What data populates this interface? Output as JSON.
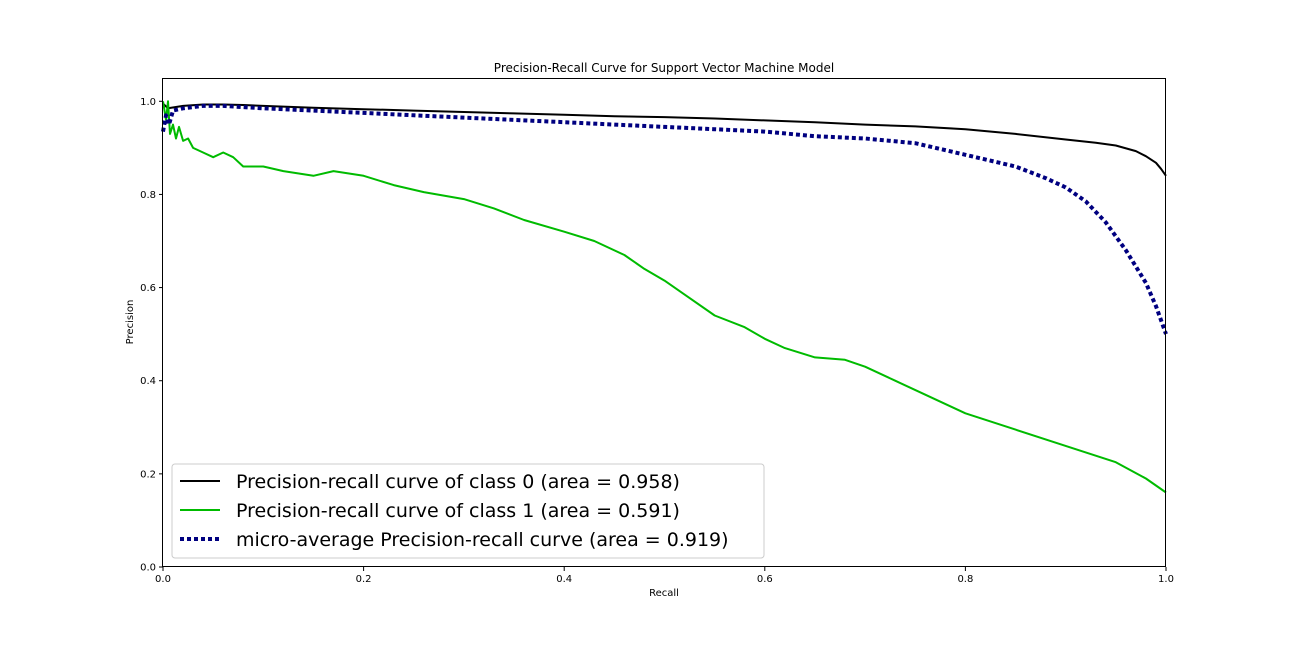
{
  "chart_data": {
    "type": "line",
    "title": "Precision-Recall Curve for Support Vector Machine Model",
    "xlabel": "Recall",
    "ylabel": "Precision",
    "xlim": [
      0,
      1
    ],
    "ylim": [
      0,
      1.05
    ],
    "xticks": [
      "0.0",
      "0.2",
      "0.4",
      "0.6",
      "0.8",
      "1.0"
    ],
    "yticks": [
      "0.0",
      "0.2",
      "0.4",
      "0.6",
      "0.8",
      "1.0"
    ],
    "grid": false,
    "legend_position": "lower-left",
    "series": [
      {
        "name": "Precision-recall curve of class 0 (area = 0.958)",
        "color": "#000000",
        "style": "solid",
        "x": [
          0.0,
          0.005,
          0.02,
          0.04,
          0.06,
          0.08,
          0.1,
          0.15,
          0.2,
          0.25,
          0.3,
          0.35,
          0.4,
          0.45,
          0.5,
          0.55,
          0.6,
          0.65,
          0.7,
          0.75,
          0.8,
          0.85,
          0.9,
          0.93,
          0.95,
          0.97,
          0.98,
          0.99,
          0.995,
          1.0
        ],
        "y": [
          0.995,
          0.985,
          0.99,
          0.993,
          0.993,
          0.992,
          0.99,
          0.986,
          0.983,
          0.98,
          0.977,
          0.974,
          0.971,
          0.968,
          0.966,
          0.963,
          0.959,
          0.955,
          0.95,
          0.946,
          0.94,
          0.93,
          0.918,
          0.911,
          0.905,
          0.893,
          0.882,
          0.868,
          0.855,
          0.84
        ]
      },
      {
        "name": "Precision-recall curve of class 1 (area = 0.591)",
        "color": "#00bb00",
        "style": "solid",
        "x": [
          0.0,
          0.003,
          0.005,
          0.007,
          0.01,
          0.013,
          0.016,
          0.02,
          0.025,
          0.03,
          0.04,
          0.05,
          0.06,
          0.07,
          0.08,
          0.1,
          0.12,
          0.15,
          0.17,
          0.2,
          0.23,
          0.26,
          0.3,
          0.33,
          0.36,
          0.4,
          0.43,
          0.46,
          0.48,
          0.5,
          0.52,
          0.55,
          0.58,
          0.6,
          0.62,
          0.65,
          0.68,
          0.7,
          0.73,
          0.76,
          0.8,
          0.85,
          0.9,
          0.95,
          0.98,
          1.0
        ],
        "y": [
          1.0,
          0.96,
          1.0,
          0.93,
          0.95,
          0.92,
          0.945,
          0.915,
          0.92,
          0.9,
          0.89,
          0.88,
          0.89,
          0.88,
          0.86,
          0.86,
          0.85,
          0.84,
          0.85,
          0.84,
          0.82,
          0.805,
          0.79,
          0.77,
          0.745,
          0.72,
          0.7,
          0.67,
          0.64,
          0.615,
          0.585,
          0.54,
          0.515,
          0.49,
          0.47,
          0.45,
          0.445,
          0.43,
          0.4,
          0.37,
          0.33,
          0.295,
          0.26,
          0.225,
          0.19,
          0.16
        ]
      },
      {
        "name": "micro-average Precision-recall curve (area = 0.919)",
        "color": "#000080",
        "style": "dotted",
        "x": [
          0.0,
          0.003,
          0.006,
          0.01,
          0.02,
          0.04,
          0.06,
          0.1,
          0.15,
          0.2,
          0.25,
          0.3,
          0.35,
          0.4,
          0.45,
          0.5,
          0.55,
          0.6,
          0.65,
          0.7,
          0.75,
          0.8,
          0.85,
          0.88,
          0.9,
          0.92,
          0.94,
          0.96,
          0.98,
          0.99,
          1.0
        ],
        "y": [
          0.935,
          0.97,
          0.95,
          0.98,
          0.985,
          0.99,
          0.99,
          0.985,
          0.98,
          0.975,
          0.97,
          0.965,
          0.96,
          0.955,
          0.95,
          0.945,
          0.94,
          0.935,
          0.925,
          0.92,
          0.91,
          0.885,
          0.86,
          0.835,
          0.815,
          0.785,
          0.74,
          0.68,
          0.61,
          0.56,
          0.5
        ]
      }
    ]
  }
}
